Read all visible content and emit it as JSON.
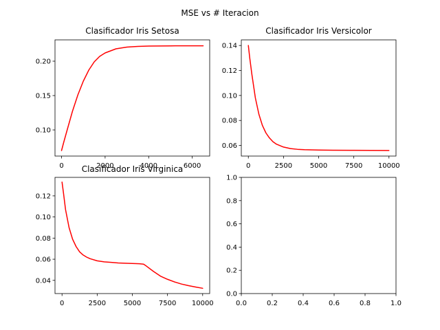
{
  "figure": {
    "suptitle": "MSE vs # Iteracion"
  },
  "colors": {
    "series": "#ff0000"
  },
  "chart_data": [
    {
      "id": "setosa",
      "type": "line",
      "title": "Clasificador Iris Setosa",
      "xlabel": "",
      "ylabel": "",
      "xlim": [
        -300,
        6800
      ],
      "ylim": [
        0.062,
        0.231
      ],
      "xticks": [
        0,
        2000,
        4000,
        6000
      ],
      "yticks": [
        0.1,
        0.15,
        0.2
      ],
      "ytick_labels": [
        "0.10",
        "0.15",
        "0.20"
      ],
      "grid": false,
      "series": [
        {
          "color": "#ff0000",
          "x": [
            0,
            100,
            250,
            500,
            750,
            1000,
            1250,
            1500,
            1750,
            2000,
            2500,
            3000,
            3500,
            4000,
            5000,
            6000,
            6500
          ],
          "y": [
            0.07,
            0.082,
            0.099,
            0.127,
            0.151,
            0.171,
            0.187,
            0.199,
            0.207,
            0.212,
            0.218,
            0.2205,
            0.2215,
            0.222,
            0.2223,
            0.2224,
            0.2224
          ]
        }
      ]
    },
    {
      "id": "versicolor",
      "type": "line",
      "title": "Clasificador Iris Versicolor",
      "xlabel": "",
      "ylabel": "",
      "xlim": [
        -500,
        10500
      ],
      "ylim": [
        0.0515,
        0.1445
      ],
      "xticks": [
        0,
        2500,
        5000,
        7500,
        10000
      ],
      "yticks": [
        0.06,
        0.08,
        0.1,
        0.12,
        0.14
      ],
      "ytick_labels": [
        "0.06",
        "0.08",
        "0.10",
        "0.12",
        "0.14"
      ],
      "grid": false,
      "series": [
        {
          "color": "#ff0000",
          "x": [
            0,
            100,
            250,
            500,
            750,
            1000,
            1250,
            1500,
            1750,
            2000,
            2500,
            3000,
            3500,
            4000,
            5000,
            6000,
            7500,
            10000
          ],
          "y": [
            0.14,
            0.13,
            0.117,
            0.098,
            0.085,
            0.076,
            0.07,
            0.066,
            0.063,
            0.061,
            0.0587,
            0.0575,
            0.0569,
            0.0566,
            0.0563,
            0.0562,
            0.0561,
            0.056
          ]
        }
      ]
    },
    {
      "id": "virginica",
      "type": "line",
      "title": "Clasificador Iris Virginica",
      "xlabel": "",
      "ylabel": "",
      "xlim": [
        -500,
        10500
      ],
      "ylim": [
        0.0275,
        0.1375
      ],
      "xticks": [
        0,
        2500,
        5000,
        7500,
        10000
      ],
      "yticks": [
        0.04,
        0.06,
        0.08,
        0.1,
        0.12
      ],
      "ytick_labels": [
        "0.04",
        "0.06",
        "0.08",
        "0.10",
        "0.12"
      ],
      "grid": false,
      "series": [
        {
          "color": "#ff0000",
          "x": [
            0,
            100,
            250,
            500,
            750,
            1000,
            1250,
            1500,
            1750,
            2000,
            2500,
            3000,
            3500,
            4000,
            4500,
            5000,
            5500,
            5800,
            6000,
            6500,
            7000,
            7500,
            8000,
            8500,
            9000,
            9500,
            10000
          ],
          "y": [
            0.133,
            0.123,
            0.107,
            0.09,
            0.079,
            0.072,
            0.067,
            0.064,
            0.062,
            0.0605,
            0.0585,
            0.0575,
            0.057,
            0.0565,
            0.0562,
            0.056,
            0.0557,
            0.0553,
            0.0535,
            0.0485,
            0.044,
            0.041,
            0.0385,
            0.0365,
            0.035,
            0.0337,
            0.0325
          ]
        }
      ]
    },
    {
      "id": "empty",
      "type": "line",
      "title": "",
      "xlabel": "",
      "ylabel": "",
      "xlim": [
        0,
        1
      ],
      "ylim": [
        0,
        1
      ],
      "xticks": [
        0,
        0.2,
        0.4,
        0.6,
        0.8,
        1.0
      ],
      "yticks": [
        0,
        0.2,
        0.4,
        0.6,
        0.8,
        1.0
      ],
      "ytick_labels": [
        "0.0",
        "0.2",
        "0.4",
        "0.6",
        "0.8",
        "1.0"
      ],
      "xtick_labels": [
        "0.0",
        "0.2",
        "0.4",
        "0.6",
        "0.8",
        "1.0"
      ],
      "grid": false,
      "series": []
    }
  ]
}
